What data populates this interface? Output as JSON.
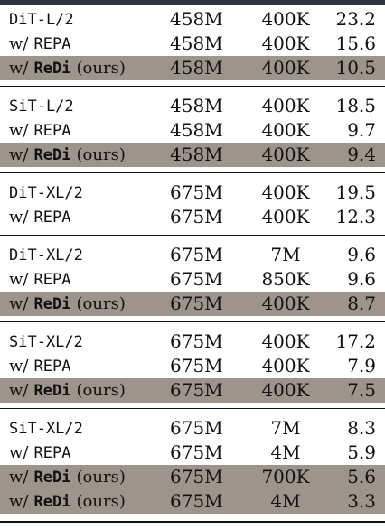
{
  "table": {
    "groups": [
      {
        "rows": [
          {
            "method_mono": "DiT-L/2",
            "method_plain": "",
            "method_bold": "",
            "method_suffix": "",
            "params": "458M",
            "iters": "400K",
            "fid": "23.2",
            "highlight": false
          },
          {
            "method_mono": "",
            "method_plain": "w/",
            "method_bold": "REPA",
            "method_suffix": "",
            "params": "458M",
            "iters": "400K",
            "fid": "15.6",
            "highlight": false
          },
          {
            "method_mono": "",
            "method_plain": "w/",
            "method_bold": "ReDi",
            "method_suffix": "(ours)",
            "params": "458M",
            "iters": "400K",
            "fid": "10.5",
            "highlight": true
          }
        ]
      },
      {
        "rows": [
          {
            "method_mono": "SiT-L/2",
            "method_plain": "",
            "method_bold": "",
            "method_suffix": "",
            "params": "458M",
            "iters": "400K",
            "fid": "18.5",
            "highlight": false
          },
          {
            "method_mono": "",
            "method_plain": "w/",
            "method_bold": "REPA",
            "method_suffix": "",
            "params": "458M",
            "iters": "400K",
            "fid": "9.7",
            "highlight": false
          },
          {
            "method_mono": "",
            "method_plain": "w/",
            "method_bold": "ReDi",
            "method_suffix": "(ours)",
            "params": "458M",
            "iters": "400K",
            "fid": "9.4",
            "highlight": true
          }
        ]
      },
      {
        "rows": [
          {
            "method_mono": "DiT-XL/2",
            "method_plain": "",
            "method_bold": "",
            "method_suffix": "",
            "params": "675M",
            "iters": "400K",
            "fid": "19.5",
            "highlight": false
          },
          {
            "method_mono": "",
            "method_plain": "w/",
            "method_bold": "REPA",
            "method_suffix": "",
            "params": "675M",
            "iters": "400K",
            "fid": "12.3",
            "highlight": false
          }
        ]
      },
      {
        "rows": [
          {
            "method_mono": "DiT-XL/2",
            "method_plain": "",
            "method_bold": "",
            "method_suffix": "",
            "params": "675M",
            "iters": "7M",
            "fid": "9.6",
            "highlight": false
          },
          {
            "method_mono": "",
            "method_plain": "w/",
            "method_bold": "REPA",
            "method_suffix": "",
            "params": "675M",
            "iters": "850K",
            "fid": "9.6",
            "highlight": false
          },
          {
            "method_mono": "",
            "method_plain": "w/",
            "method_bold": "ReDi",
            "method_suffix": "(ours)",
            "params": "675M",
            "iters": "400K",
            "fid": "8.7",
            "highlight": true
          }
        ]
      },
      {
        "rows": [
          {
            "method_mono": "SiT-XL/2",
            "method_plain": "",
            "method_bold": "",
            "method_suffix": "",
            "params": "675M",
            "iters": "400K",
            "fid": "17.2",
            "highlight": false
          },
          {
            "method_mono": "",
            "method_plain": "w/",
            "method_bold": "REPA",
            "method_suffix": "",
            "params": "675M",
            "iters": "400K",
            "fid": "7.9",
            "highlight": false
          },
          {
            "method_mono": "",
            "method_plain": "w/",
            "method_bold": "ReDi",
            "method_suffix": "(ours)",
            "params": "675M",
            "iters": "400K",
            "fid": "7.5",
            "highlight": true
          }
        ]
      },
      {
        "rows": [
          {
            "method_mono": "SiT-XL/2",
            "method_plain": "",
            "method_bold": "",
            "method_suffix": "",
            "params": "675M",
            "iters": "7M",
            "fid": "8.3",
            "highlight": false
          },
          {
            "method_mono": "",
            "method_plain": "w/",
            "method_bold": "REPA",
            "method_suffix": "",
            "params": "675M",
            "iters": "4M",
            "fid": "5.9",
            "highlight": false
          },
          {
            "method_mono": "",
            "method_plain": "w/",
            "method_bold": "ReDi",
            "method_suffix": "(ours)",
            "params": "675M",
            "iters": "700K",
            "fid": "5.6",
            "highlight": true
          },
          {
            "method_mono": "",
            "method_plain": "w/",
            "method_bold": "ReDi",
            "method_suffix": "(ours)",
            "params": "675M",
            "iters": "4M",
            "fid": "3.3",
            "highlight": true
          }
        ]
      }
    ]
  },
  "colors": {
    "highlight": "#9d958b",
    "topbar": "#2f3540",
    "rule": "#111111"
  }
}
